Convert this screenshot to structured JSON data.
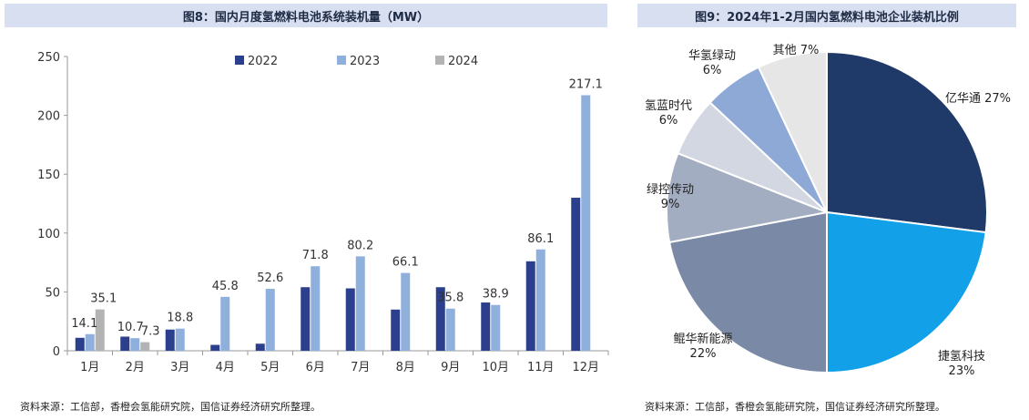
{
  "colors": {
    "title_bg": "#d7dff0",
    "s2022": "#2b3f8c",
    "s2023": "#8fb0dc",
    "s2024": "#b3b3b3",
    "pie": [
      "#1f3a68",
      "#12a0e8",
      "#7a8aa6",
      "#a3adc1",
      "#d2d7e2",
      "#8fa9d6",
      "#e6e6e6"
    ]
  },
  "left": {
    "title": "图8：国内月度氢燃料电池系统装机量（MW）",
    "source": "资料来源：工信部，香橙会氢能研究院，国信证券经济研究所整理。"
  },
  "right": {
    "title": "图9：2024年1-2月国内氢燃料电池企业装机比例",
    "source": "资料来源：工信部，香橙会氢能研究院，国信证券经济研究所整理。"
  },
  "chart_data": [
    {
      "type": "bar",
      "categories": [
        "1月",
        "2月",
        "3月",
        "4月",
        "5月",
        "6月",
        "7月",
        "8月",
        "9月",
        "10月",
        "11月",
        "12月"
      ],
      "series": [
        {
          "name": "2022",
          "values": [
            11,
            12,
            18,
            5,
            6,
            54,
            53,
            35,
            54,
            41,
            76,
            130
          ]
        },
        {
          "name": "2023",
          "values": [
            14.1,
            10.7,
            18.8,
            45.8,
            52.6,
            71.8,
            80.2,
            66.1,
            35.8,
            38.9,
            86.1,
            217.1
          ]
        },
        {
          "name": "2024",
          "values": [
            35.1,
            7.3,
            null,
            null,
            null,
            null,
            null,
            null,
            null,
            null,
            null,
            null
          ]
        }
      ],
      "data_labels": [
        {
          "series": "2023",
          "index": 0,
          "text": "14.1"
        },
        {
          "series": "2024",
          "index": 0,
          "text": "35.1"
        },
        {
          "series": "2023",
          "index": 1,
          "text": "10.7"
        },
        {
          "series": "2024",
          "index": 1,
          "text": "7.3"
        },
        {
          "series": "2023",
          "index": 2,
          "text": "18.8"
        },
        {
          "series": "2023",
          "index": 3,
          "text": "45.8"
        },
        {
          "series": "2023",
          "index": 4,
          "text": "52.6"
        },
        {
          "series": "2023",
          "index": 5,
          "text": "71.8"
        },
        {
          "series": "2023",
          "index": 6,
          "text": "80.2"
        },
        {
          "series": "2023",
          "index": 7,
          "text": "66.1"
        },
        {
          "series": "2023",
          "index": 8,
          "text": "35.8"
        },
        {
          "series": "2023",
          "index": 9,
          "text": "38.9"
        },
        {
          "series": "2023",
          "index": 10,
          "text": "86.1"
        },
        {
          "series": "2023",
          "index": 11,
          "text": "217.1"
        }
      ],
      "ylim": [
        0,
        250
      ],
      "yticks": [
        0,
        50,
        100,
        150,
        200,
        250
      ],
      "grid": false,
      "legend": "top-center"
    },
    {
      "type": "pie",
      "slices": [
        {
          "label": "亿华通",
          "value": 27,
          "text": "亿华通 27%"
        },
        {
          "label": "捷氢科技",
          "value": 23,
          "text": "捷氢科技 23%"
        },
        {
          "label": "鲲华新能源",
          "value": 22,
          "text": "鲲华新能源 22%"
        },
        {
          "label": "绿控传动",
          "value": 9,
          "text": "绿控传动 9%"
        },
        {
          "label": "氢蓝时代",
          "value": 6,
          "text": "氢蓝时代 6%"
        },
        {
          "label": "华氢绿动",
          "value": 6,
          "text": "华氢绿动 6%"
        },
        {
          "label": "其他",
          "value": 7,
          "text": "其他 7%"
        }
      ],
      "start": "12 o'clock",
      "direction": "clockwise"
    }
  ]
}
